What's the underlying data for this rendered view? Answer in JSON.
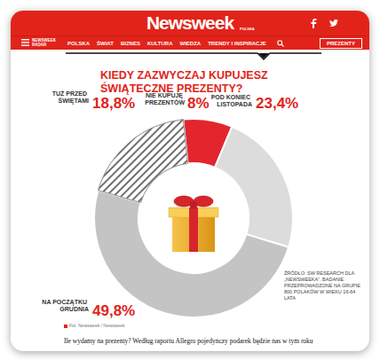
{
  "page": {
    "logo": "Newsweek",
    "edition": "POLSKA",
    "menu_label": "NEWSWEEK RADAR",
    "nav": [
      "POLSKA",
      "ŚWIAT",
      "BIZNES",
      "KULTURA",
      "WIEDZA",
      "TRENDY I INSPIRACJE"
    ],
    "nav_button": "PREZENTY",
    "photo_credit": "Fot. Newsweek / Newsweek",
    "body_text": "Ile wydamy na prezenty? Według raportu Allegro pojedynczy podarek będzie nas w tym roku"
  },
  "chart_data": {
    "type": "donut",
    "title": "KIEDY ZAZWYCZAJ KUPUJESZ ŚWIĄTECZNE PREZENTY?",
    "categories": [
      "NIE KUPUJĘ PREZENTÓW",
      "POD KONIEC LISTOPADA",
      "NA POCZĄTKU GRUDNIA",
      "TUŻ PRZED ŚWIĘTAMI"
    ],
    "values": [
      8,
      23.4,
      49.8,
      18.8
    ],
    "value_labels": [
      "8%",
      "23,4%",
      "49,8%",
      "18,8%"
    ],
    "colors": [
      "#e3262d",
      "#dcdcdc",
      "#c4c4c4",
      "#ffffff"
    ],
    "data_labels": true,
    "source": "ŹRÓDŁO: SW RESEARCH DLA „NEWSWEEKA”. BADANIE PRZEPROWADZONE NA GRUPIE 800 POLAKÓW W WIEKU 16-64 LATA"
  }
}
